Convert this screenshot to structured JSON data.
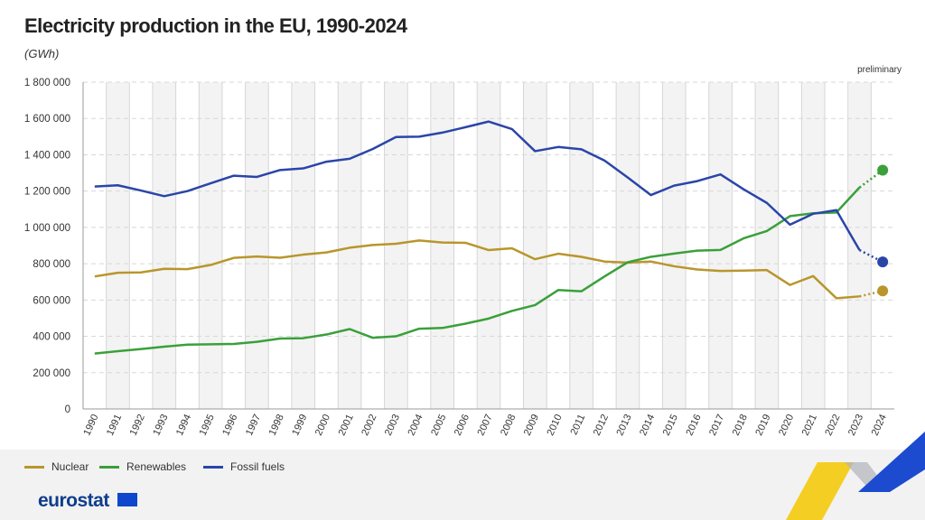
{
  "chart_data": {
    "type": "line",
    "title": "Electricity production in the EU, 1990-2024",
    "unit": "(GWh)",
    "annotation": "preliminary",
    "x": [
      1990,
      1991,
      1992,
      1993,
      1994,
      1995,
      1996,
      1997,
      1998,
      1999,
      2000,
      2001,
      2002,
      2003,
      2004,
      2005,
      2006,
      2007,
      2008,
      2009,
      2010,
      2011,
      2012,
      2013,
      2014,
      2015,
      2016,
      2017,
      2018,
      2019,
      2020,
      2021,
      2022,
      2023,
      2024
    ],
    "ylim": [
      0,
      1800000
    ],
    "yticks": [
      0,
      200000,
      400000,
      600000,
      800000,
      1000000,
      1200000,
      1400000,
      1600000,
      1800000
    ],
    "ytick_labels": [
      "0",
      "200 000",
      "400 000",
      "600 000",
      "800 000",
      "1 000 000",
      "1 200 000",
      "1 400 000",
      "1 600 000",
      "1 800 000"
    ],
    "grid": true,
    "legend_placement": "bottom-left",
    "series": [
      {
        "name": "Nuclear",
        "color": "#b8962c",
        "values": [
          730000,
          750000,
          752000,
          772000,
          770000,
          793000,
          832000,
          840000,
          833000,
          850000,
          862000,
          888000,
          903000,
          910000,
          928000,
          917000,
          915000,
          875000,
          885000,
          825000,
          855000,
          838000,
          812000,
          806000,
          812000,
          786000,
          768000,
          760000,
          762000,
          765000,
          683000,
          732000,
          610000,
          620000,
          650000
        ]
      },
      {
        "name": "Renewables",
        "color": "#3aa03a",
        "values": [
          305000,
          318000,
          330000,
          343000,
          354000,
          356000,
          358000,
          370000,
          388000,
          390000,
          410000,
          440000,
          392000,
          400000,
          442000,
          446000,
          470000,
          498000,
          540000,
          572000,
          655000,
          648000,
          730000,
          808000,
          838000,
          856000,
          872000,
          876000,
          940000,
          980000,
          1062000,
          1078000,
          1082000,
          1220000,
          1315000
        ]
      },
      {
        "name": "Fossil fuels",
        "color": "#2a45a8",
        "values": [
          1225000,
          1232000,
          1203000,
          1172000,
          1200000,
          1243000,
          1285000,
          1278000,
          1316000,
          1325000,
          1362000,
          1378000,
          1432000,
          1498000,
          1500000,
          1522000,
          1552000,
          1583000,
          1542000,
          1420000,
          1443000,
          1430000,
          1368000,
          1275000,
          1178000,
          1230000,
          1255000,
          1292000,
          1210000,
          1135000,
          1015000,
          1075000,
          1095000,
          875000,
          810000
        ]
      }
    ],
    "preliminary_years": [
      2024
    ]
  },
  "branding": {
    "logo_text": "eurostat"
  }
}
